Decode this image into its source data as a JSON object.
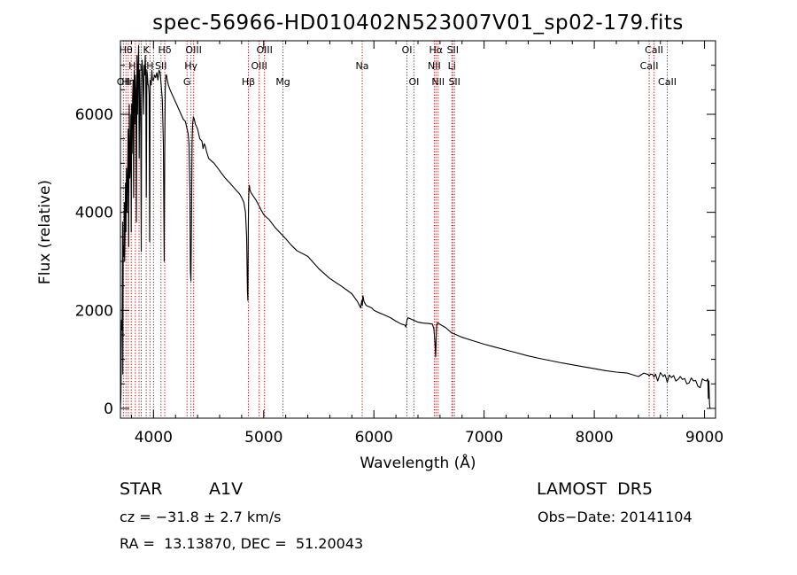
{
  "chart_data": {
    "type": "line",
    "title": "spec-56966-HD010402N523007V01_sp02-179.fits",
    "xlabel": "Wavelength (Å)",
    "ylabel": "Flux (relative)",
    "xlim": [
      3700,
      9100
    ],
    "ylim": [
      -200,
      7500
    ],
    "xticks": [
      4000,
      5000,
      6000,
      7000,
      8000,
      9000
    ],
    "yticks": [
      0,
      2000,
      4000,
      6000
    ],
    "grid": false,
    "series": [
      {
        "color": "#000000",
        "x": [
          3700,
          3705,
          3710,
          3715,
          3720,
          3722,
          3725,
          3730,
          3735,
          3738,
          3742,
          3746,
          3750,
          3755,
          3760,
          3765,
          3770,
          3775,
          3780,
          3785,
          3790,
          3795,
          3798,
          3802,
          3806,
          3810,
          3815,
          3820,
          3825,
          3830,
          3835,
          3840,
          3845,
          3850,
          3855,
          3860,
          3865,
          3870,
          3875,
          3880,
          3885,
          3889,
          3893,
          3897,
          3902,
          3906,
          3910,
          3915,
          3920,
          3925,
          3930,
          3935,
          3940,
          3945,
          3950,
          3955,
          3960,
          3965,
          3970,
          3975,
          3980,
          3985,
          3990,
          3995,
          4000,
          4010,
          4020,
          4030,
          4040,
          4050,
          4060,
          4070,
          4080,
          4090,
          4097,
          4102,
          4107,
          4112,
          4118,
          4125,
          4135,
          4150,
          4170,
          4190,
          4210,
          4230,
          4250,
          4270,
          4290,
          4305,
          4315,
          4322,
          4330,
          4335,
          4340,
          4345,
          4350,
          4355,
          4362,
          4370,
          4380,
          4390,
          4400,
          4420,
          4440,
          4450,
          4460,
          4470,
          4480,
          4500,
          4550,
          4600,
          4650,
          4700,
          4750,
          4780,
          4800,
          4820,
          4835,
          4845,
          4852,
          4856,
          4860,
          4863,
          4866,
          4870,
          4876,
          4885,
          4900,
          4930,
          4960,
          5000,
          5050,
          5100,
          5150,
          5200,
          5250,
          5300,
          5400,
          5500,
          5600,
          5700,
          5800,
          5850,
          5880,
          5890,
          5895,
          5900,
          5905,
          5910,
          5930,
          5950,
          5980,
          6000,
          6050,
          6100,
          6150,
          6200,
          6250,
          6280,
          6290,
          6300,
          6310,
          6330,
          6360,
          6400,
          6450,
          6500,
          6530,
          6545,
          6555,
          6560,
          6563,
          6566,
          6570,
          6578,
          6590,
          6610,
          6650,
          6700,
          6800,
          6900,
          7000,
          7100,
          7200,
          7300,
          7400,
          7500,
          7600,
          7700,
          7800,
          7900,
          8000,
          8100,
          8200,
          8300,
          8400,
          8450,
          8490,
          8498,
          8510,
          8530,
          8542,
          8555,
          8575,
          8600,
          8625,
          8640,
          8650,
          8662,
          8680,
          8700,
          8720,
          8740,
          8760,
          8780,
          8800,
          8820,
          8840,
          8860,
          8880,
          8900,
          8920,
          8940,
          8960,
          8980,
          9000,
          9020,
          9030,
          9035,
          9040,
          9045,
          9050
        ],
        "values": [
          0,
          300,
          1800,
          1600,
          3800,
          700,
          3300,
          3100,
          4200,
          3000,
          3500,
          4600,
          3600,
          4900,
          4000,
          4800,
          5700,
          3300,
          6200,
          4700,
          5100,
          6000,
          3600,
          6200,
          5200,
          6300,
          6700,
          4300,
          6900,
          5800,
          6800,
          6500,
          3800,
          7200,
          6000,
          6900,
          7400,
          5100,
          6900,
          6300,
          5600,
          3200,
          6700,
          7100,
          6900,
          6600,
          6000,
          7000,
          6800,
          7200,
          6800,
          4300,
          6900,
          6800,
          6600,
          6600,
          6400,
          3400,
          6700,
          6600,
          6600,
          6900,
          6700,
          6700,
          6700,
          6800,
          6750,
          6850,
          6700,
          6900,
          6850,
          6600,
          6300,
          5400,
          3000,
          5200,
          6500,
          6800,
          6800,
          6700,
          6600,
          6500,
          6400,
          6300,
          6200,
          6100,
          6000,
          5900,
          5850,
          5700,
          5600,
          5400,
          4500,
          2800,
          2600,
          3900,
          5400,
          5800,
          5950,
          5900,
          5800,
          5750,
          5700,
          5500,
          5450,
          5300,
          5400,
          5350,
          5250,
          5100,
          5000,
          4850,
          4700,
          4580,
          4450,
          4380,
          4300,
          4200,
          4000,
          3500,
          2400,
          2200,
          3700,
          4200,
          4450,
          4550,
          4450,
          4400,
          4350,
          4250,
          4120,
          3950,
          3850,
          3700,
          3580,
          3460,
          3330,
          3220,
          3100,
          2850,
          2650,
          2500,
          2340,
          2180,
          2050,
          2200,
          2100,
          2300,
          2250,
          2180,
          2100,
          2080,
          2050,
          2000,
          1950,
          1900,
          1850,
          1780,
          1720,
          1700,
          1660,
          1800,
          1850,
          1830,
          1800,
          1760,
          1740,
          1730,
          1720,
          1620,
          1300,
          1050,
          1250,
          1550,
          1700,
          1750,
          1730,
          1700,
          1650,
          1550,
          1450,
          1380,
          1310,
          1250,
          1190,
          1130,
          1070,
          1020,
          975,
          930,
          890,
          850,
          810,
          770,
          740,
          720,
          650,
          720,
          690,
          660,
          700,
          690,
          640,
          700,
          560,
          730,
          650,
          690,
          630,
          530,
          680,
          630,
          670,
          560,
          590,
          650,
          590,
          610,
          500,
          520,
          620,
          560,
          570,
          450,
          420,
          600,
          570,
          560,
          600,
          200,
          560,
          100,
          0
        ]
      }
    ],
    "line_markers": [
      {
        "x": 3727,
        "label": "OII",
        "row": 2
      },
      {
        "x": 3750,
        "label": "Hθ",
        "row": 0
      },
      {
        "x": 3771,
        "label": "Hη",
        "row": 2
      },
      {
        "x": 3798,
        "label": "",
        "row": 1
      },
      {
        "x": 3835,
        "label": "Hη",
        "row": 1
      },
      {
        "x": 3869,
        "label": "",
        "row": 1
      },
      {
        "x": 3889,
        "label": "",
        "row": 1
      },
      {
        "x": 3934,
        "label": "K",
        "row": 0
      },
      {
        "x": 3968,
        "label": "H",
        "row": 1
      },
      {
        "x": 4000,
        "label": "",
        "row": 1
      },
      {
        "x": 4068,
        "label": "SII",
        "row": 1
      },
      {
        "x": 4102,
        "label": "Hδ",
        "row": 0
      },
      {
        "x": 4304,
        "label": "G",
        "row": 2
      },
      {
        "x": 4340,
        "label": "Hγ",
        "row": 1
      },
      {
        "x": 4364,
        "label": "OIII",
        "row": 0
      },
      {
        "x": 4861,
        "label": "Hβ",
        "row": 2
      },
      {
        "x": 4959,
        "label": "OIII",
        "row": 1
      },
      {
        "x": 5007,
        "label": "OIII",
        "row": 0
      },
      {
        "x": 5175,
        "label": "Mg",
        "row": 2
      },
      {
        "x": 5894,
        "label": "Na",
        "row": 1
      },
      {
        "x": 6300,
        "label": "OI",
        "row": 0
      },
      {
        "x": 6363,
        "label": "OI",
        "row": 2
      },
      {
        "x": 6548,
        "label": "NII",
        "row": 1
      },
      {
        "x": 6563,
        "label": "Hα",
        "row": 0
      },
      {
        "x": 6583,
        "label": "NII",
        "row": 2
      },
      {
        "x": 6707,
        "label": "Li",
        "row": 1
      },
      {
        "x": 6716,
        "label": "SII",
        "row": 0
      },
      {
        "x": 6731,
        "label": "SII",
        "row": 2
      },
      {
        "x": 8498,
        "label": "CaII",
        "row": 1
      },
      {
        "x": 8542,
        "label": "CaII",
        "row": 0
      },
      {
        "x": 8662,
        "label": "CaII",
        "row": 2
      }
    ],
    "marker_color": "#c00000"
  },
  "info": {
    "object_type": "STAR",
    "subclass": "A1V",
    "survey": "LAMOST  DR5",
    "redshift": "cz = −31.8 ± 2.7 km/s",
    "obs_date": "Obs−Date: 20141104",
    "coords": "RA =  13.13870, DEC =  51.20043"
  }
}
